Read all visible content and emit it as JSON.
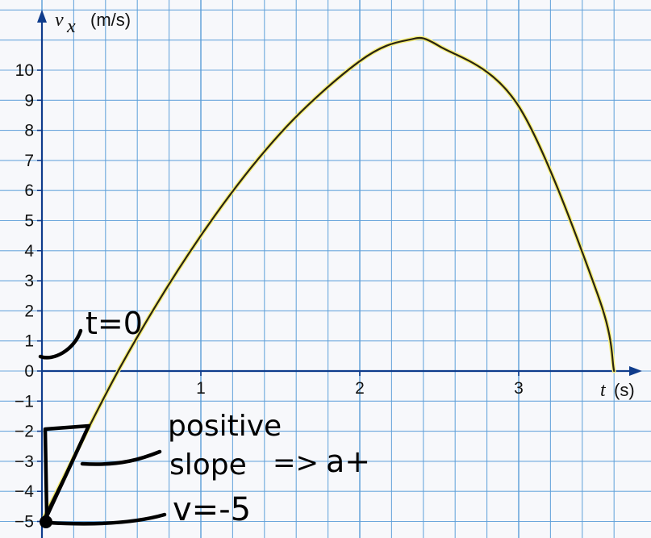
{
  "chart_data": {
    "type": "line",
    "xlabel": "t (s)",
    "xlabel_var": "t",
    "xlabel_unit": "(s)",
    "ylabel_var": "v",
    "ylabel_sub": "x",
    "ylabel_unit": "(m/s)",
    "x_ticks": [
      "1",
      "2",
      "3"
    ],
    "y_ticks": [
      "10",
      "9",
      "8",
      "7",
      "6",
      "5",
      "4",
      "3",
      "2",
      "1",
      "0",
      "−1",
      "−2",
      "−3",
      "−4",
      "−5"
    ],
    "xlim": [
      0,
      3.75
    ],
    "ylim": [
      -5,
      11
    ],
    "grid": true,
    "series": [
      {
        "x": [
          0,
          0.5,
          1,
          1.5,
          2,
          2.3,
          2.5,
          3,
          3.5,
          3.6
        ],
        "y": [
          -5,
          0.2,
          4.5,
          7.9,
          10.3,
          11.0,
          10.8,
          8.8,
          2.5,
          0
        ]
      }
    ],
    "colors": {
      "grid": "#5d9fd9",
      "axis": "#0f3c8c",
      "curve": "#2a2410",
      "curve_glow": "#f6ef7a",
      "background": "#f7f8fb"
    }
  },
  "annotations": {
    "t0": "t=0",
    "positive": "positive",
    "slope": "slope",
    "implies": "=>",
    "a_plus": "a+",
    "v_eq": "v=-5"
  }
}
